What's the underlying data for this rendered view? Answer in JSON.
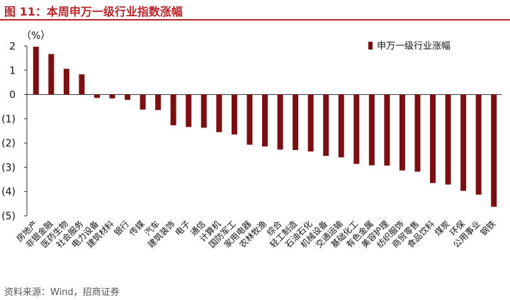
{
  "header": {
    "title": "图 11：本周申万一级行业指数涨幅"
  },
  "footer": {
    "source": "资料来源：Wind，招商证券"
  },
  "chart_data": {
    "type": "bar",
    "ylabel": "（%）",
    "legend": "申万一级行业涨幅",
    "ylim": [
      -5,
      2
    ],
    "yticks": [
      2,
      1,
      0,
      -1,
      -2,
      -3,
      -4,
      -5
    ],
    "ytick_labels": [
      "2",
      "1",
      "0",
      "(1)",
      "(2)",
      "(3)",
      "(4)",
      "(5)"
    ],
    "bar_color": "#7b0f12",
    "categories": [
      "房地产",
      "非银金融",
      "医药生物",
      "社会服务",
      "电力设备",
      "建筑材料",
      "银行",
      "传媒",
      "汽车",
      "建筑装饰",
      "电子",
      "通信",
      "计算机",
      "国防军工",
      "家用电器",
      "农林牧渔",
      "综合",
      "轻工制造",
      "石油石化",
      "机械设备",
      "交通运输",
      "基础化工",
      "有色金属",
      "美容护理",
      "纺织服饰",
      "商贸零售",
      "食品饮料",
      "煤炭",
      "环保",
      "公用事业",
      "钢铁"
    ],
    "values": [
      1.97,
      1.67,
      1.06,
      0.83,
      -0.14,
      -0.16,
      -0.22,
      -0.62,
      -0.64,
      -1.27,
      -1.34,
      -1.37,
      -1.55,
      -1.65,
      -2.07,
      -2.14,
      -2.27,
      -2.29,
      -2.35,
      -2.53,
      -2.59,
      -2.86,
      -2.92,
      -2.93,
      -3.13,
      -3.18,
      -3.65,
      -3.71,
      -3.97,
      -4.13,
      -4.63
    ]
  }
}
